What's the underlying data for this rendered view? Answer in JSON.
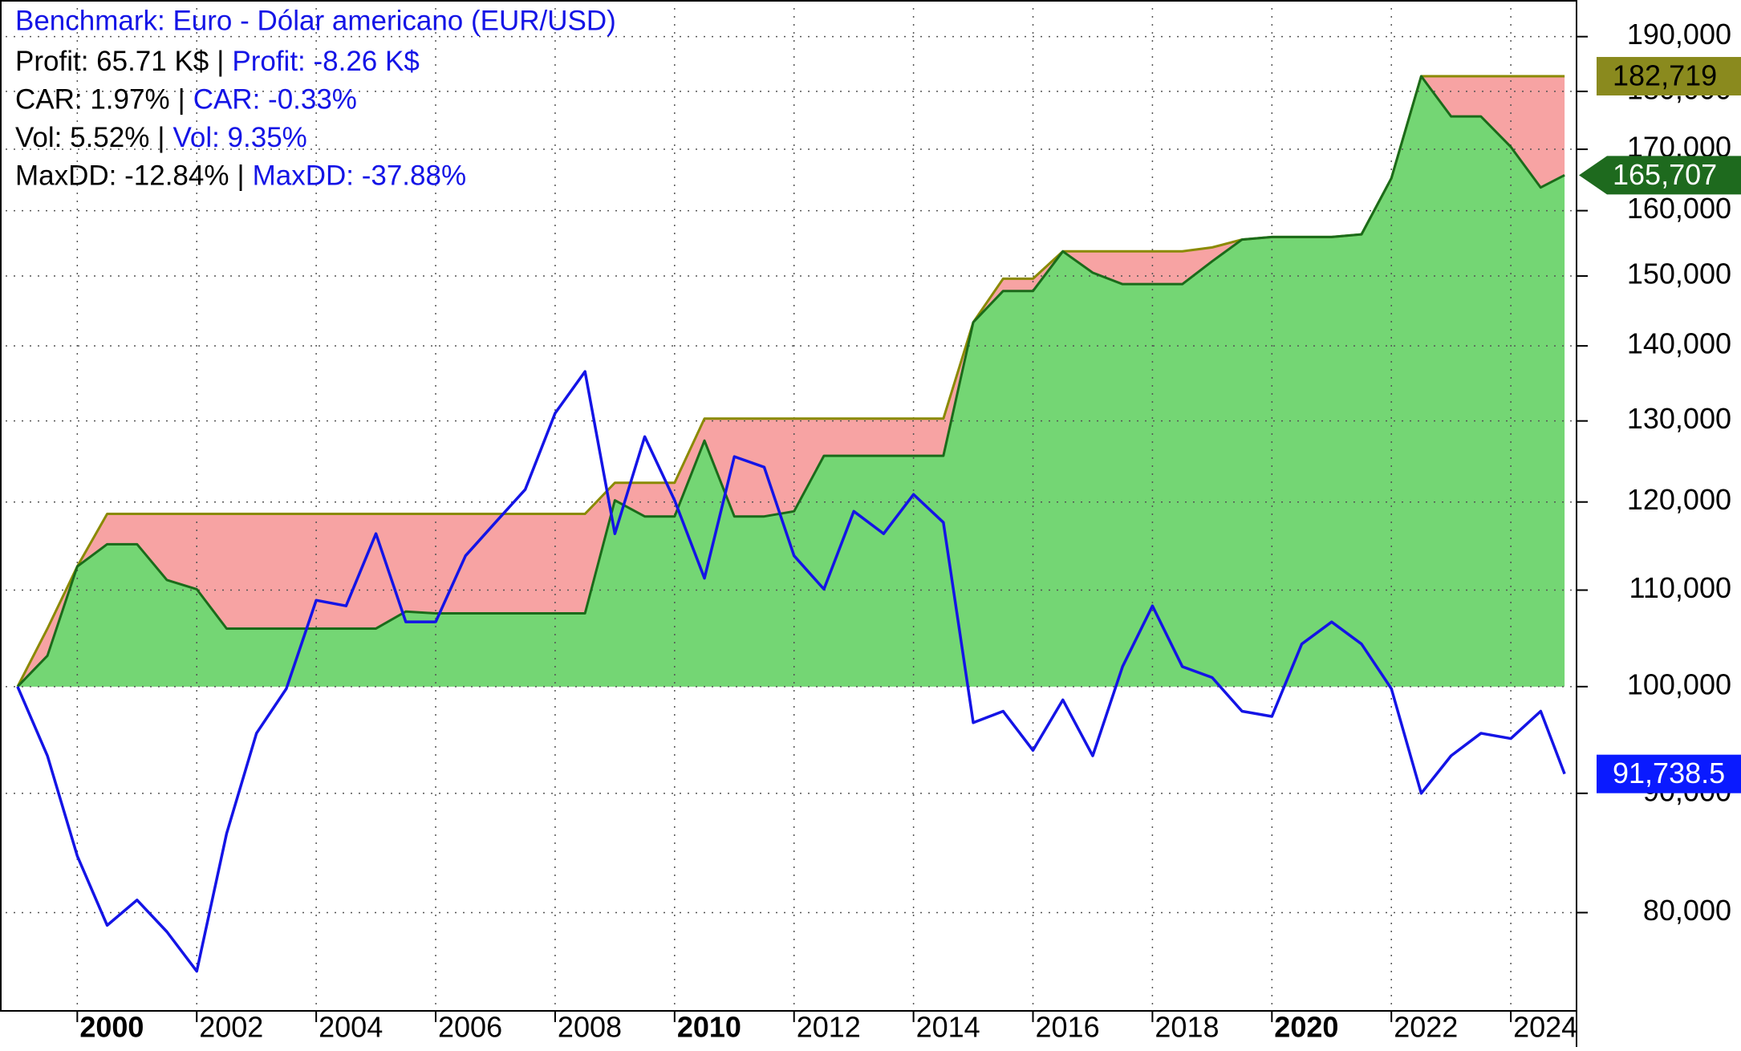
{
  "chart_data": {
    "type": "line",
    "stats": [
      [
        "Profit: 65.71 K$",
        "Profit: -8.26 K$"
      ],
      [
        "CAR: 1.97%",
        "CAR: -0.33%"
      ],
      [
        "Vol: 5.52%",
        "Vol: 9.35%"
      ],
      [
        "MaxDD: -12.84%",
        "MaxDD: -37.88%"
      ]
    ],
    "separator": "|",
    "x": [
      1999,
      1999.5,
      2000,
      2000.5,
      2001,
      2001.5,
      2002,
      2002.5,
      2003,
      2003.5,
      2004,
      2004.5,
      2005,
      2005.5,
      2006,
      2006.5,
      2007,
      2007.5,
      2008,
      2008.5,
      2009,
      2009.5,
      2010,
      2010.5,
      2011,
      2011.5,
      2012,
      2012.5,
      2013,
      2013.5,
      2014,
      2014.5,
      2015,
      2015.5,
      2016,
      2016.5,
      2017,
      2017.5,
      2018,
      2018.5,
      2019,
      2019.5,
      2020,
      2020.5,
      2021,
      2021.5,
      2022,
      2022.5,
      2023,
      2023.5,
      2024,
      2024.5,
      2024.9
    ],
    "series": [
      {
        "color": "#1a6b1a",
        "fill": "#74d674",
        "label_fill": "#1e6a1e",
        "label_text_color": "#ffffff",
        "arrow": true,
        "values": [
          100000,
          103100,
          112600,
          115100,
          115100,
          111100,
          110100,
          105900,
          105900,
          105900,
          105900,
          105900,
          105900,
          107700,
          107500,
          107500,
          107500,
          107500,
          107500,
          107500,
          120200,
          118300,
          118300,
          127500,
          118300,
          118300,
          118900,
          125600,
          125600,
          125600,
          125600,
          125600,
          143300,
          147800,
          147800,
          153700,
          150500,
          148800,
          148800,
          148800,
          152200,
          155500,
          155900,
          155900,
          155900,
          156300,
          165200,
          182719,
          175600,
          175600,
          170400,
          163700,
          165707
        ],
        "value_labels": [
          null,
          null,
          null,
          null,
          null,
          null,
          null,
          null,
          null,
          null,
          null,
          null,
          null,
          null,
          null,
          null,
          null,
          null,
          null,
          null,
          null,
          null,
          null,
          null,
          null,
          null,
          null,
          null,
          null,
          null,
          null,
          null,
          null,
          null,
          null,
          null,
          null,
          null,
          null,
          null,
          null,
          null,
          null,
          null,
          null,
          null,
          null,
          null,
          null,
          null,
          null,
          null,
          "165,707"
        ]
      },
      {
        "color": "#8a8a00",
        "fill": "#f7a3a3",
        "label_fill": "#8a8a1e",
        "label_text_color": "#000000",
        "arrow": false,
        "values": [
          100000,
          105900,
          112600,
          118600,
          118600,
          118600,
          118600,
          118600,
          118600,
          118600,
          118600,
          118600,
          118600,
          118600,
          118600,
          118600,
          118600,
          118600,
          118600,
          118600,
          122300,
          122300,
          122300,
          130300,
          130300,
          130300,
          130300,
          130300,
          130300,
          130300,
          130300,
          130300,
          143300,
          149600,
          149600,
          153700,
          153700,
          153700,
          153700,
          153700,
          154300,
          155500,
          155900,
          155900,
          155900,
          156300,
          165200,
          182719,
          182719,
          182719,
          182719,
          182719,
          182719
        ],
        "value_labels": [
          null,
          null,
          null,
          null,
          null,
          null,
          null,
          null,
          null,
          null,
          null,
          null,
          null,
          null,
          null,
          null,
          null,
          null,
          null,
          null,
          null,
          null,
          null,
          null,
          null,
          null,
          null,
          null,
          null,
          null,
          null,
          null,
          null,
          null,
          null,
          null,
          null,
          null,
          null,
          null,
          null,
          null,
          null,
          null,
          null,
          null,
          null,
          null,
          null,
          null,
          null,
          null,
          "182,719"
        ]
      },
      {
        "name": "Benchmark: Euro - Dólar americano (EUR/USD)",
        "color": "#1414e6",
        "label_fill": "#0a1aff",
        "label_text_color": "#ffffff",
        "arrow": false,
        "values": [
          100000,
          93400,
          84600,
          79000,
          81000,
          78500,
          75500,
          86500,
          95500,
          99800,
          108900,
          108300,
          116300,
          106600,
          106600,
          113800,
          117600,
          121500,
          131000,
          136500,
          116300,
          128000,
          120200,
          111300,
          125500,
          124200,
          113800,
          110100,
          118900,
          116300,
          120900,
          117600,
          96500,
          97600,
          93900,
          98700,
          93400,
          102000,
          108300,
          102000,
          100900,
          97600,
          97100,
          104300,
          106600,
          104300,
          99800,
          90000,
          93400,
          95500,
          95000,
          97600,
          91738.5
        ],
        "value_labels": [
          null,
          null,
          null,
          null,
          null,
          null,
          null,
          null,
          null,
          null,
          null,
          null,
          null,
          null,
          null,
          null,
          null,
          null,
          null,
          null,
          null,
          null,
          null,
          null,
          null,
          null,
          null,
          null,
          null,
          null,
          null,
          null,
          null,
          null,
          null,
          null,
          null,
          null,
          null,
          null,
          null,
          null,
          null,
          null,
          null,
          null,
          null,
          null,
          null,
          null,
          null,
          null,
          "91,738.5"
        ]
      }
    ],
    "xlim": [
      1998.8,
      2025.1
    ],
    "xticks": [
      2000,
      2002,
      2004,
      2006,
      2008,
      2010,
      2012,
      2014,
      2016,
      2018,
      2020,
      2022,
      2024
    ],
    "ylim": [
      72600,
      197000
    ],
    "log_y": true,
    "grid": true,
    "yticks": [
      {
        "value": 80000,
        "label": "80,000"
      },
      {
        "value": 90000,
        "label": "90,000"
      },
      {
        "value": 100000,
        "label": "100,000"
      },
      {
        "value": 110000,
        "label": "110,000"
      },
      {
        "value": 120000,
        "label": "120,000"
      },
      {
        "value": 130000,
        "label": "130,000"
      },
      {
        "value": 140000,
        "label": "140,000"
      },
      {
        "value": 150000,
        "label": "150,000"
      },
      {
        "value": 160000,
        "label": "160,000"
      },
      {
        "value": 170000,
        "label": "170,000"
      },
      {
        "value": 180000,
        "label": "180,000"
      },
      {
        "value": 190000,
        "label": "190,000"
      }
    ]
  }
}
